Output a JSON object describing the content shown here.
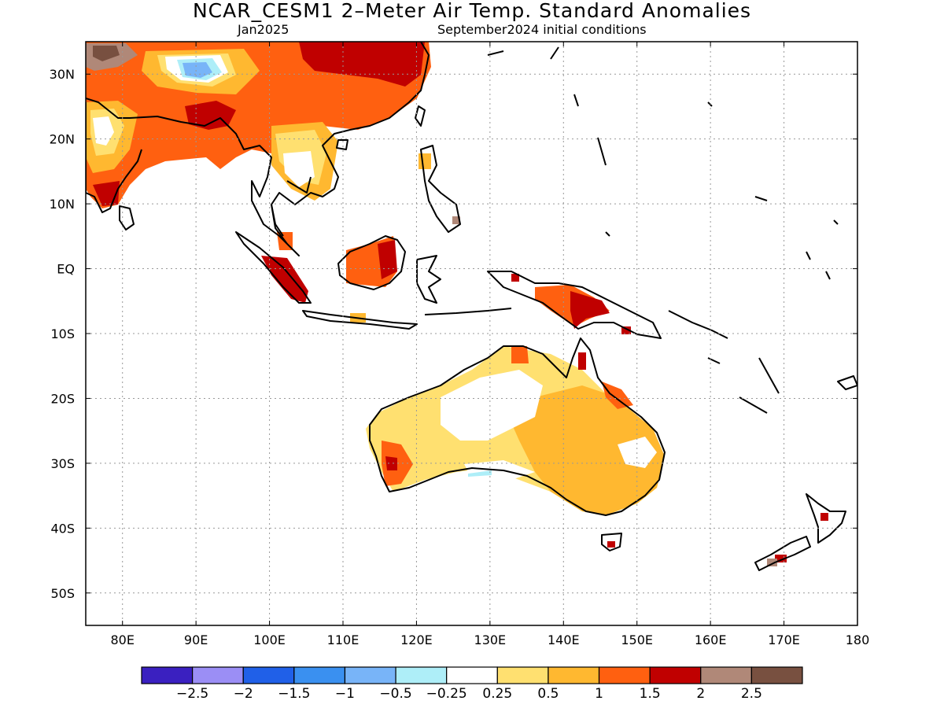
{
  "title": "NCAR_CESM1 2–Meter Air Temp. Standard Anomalies",
  "subtitle_left": "Jan2025",
  "subtitle_right": "September2024 initial conditions",
  "map": {
    "lon_range": [
      75,
      180
    ],
    "lat_range": [
      -55,
      35
    ],
    "lon_ticks": [
      {
        "value": 80,
        "label": "80E"
      },
      {
        "value": 90,
        "label": "90E"
      },
      {
        "value": 100,
        "label": "100E"
      },
      {
        "value": 110,
        "label": "110E"
      },
      {
        "value": 120,
        "label": "120E"
      },
      {
        "value": 130,
        "label": "130E"
      },
      {
        "value": 140,
        "label": "140E"
      },
      {
        "value": 150,
        "label": "150E"
      },
      {
        "value": 160,
        "label": "160E"
      },
      {
        "value": 170,
        "label": "170E"
      },
      {
        "value": 180,
        "label": "180"
      }
    ],
    "lat_ticks": [
      {
        "value": 30,
        "label": "30N"
      },
      {
        "value": 20,
        "label": "20N"
      },
      {
        "value": 10,
        "label": "10N"
      },
      {
        "value": 0,
        "label": "EQ"
      },
      {
        "value": -10,
        "label": "10S"
      },
      {
        "value": -20,
        "label": "20S"
      },
      {
        "value": -30,
        "label": "30S"
      },
      {
        "value": -40,
        "label": "40S"
      },
      {
        "value": -50,
        "label": "50S"
      }
    ],
    "grid": "dotted"
  },
  "colorbar": {
    "colors": [
      "#3a20c0",
      "#9b8ef5",
      "#2060e8",
      "#3a90f0",
      "#78b4f8",
      "#aeeef8",
      "#ffffff",
      "#ffe070",
      "#ffb830",
      "#ff6010",
      "#c00000",
      "#b08878",
      "#785040"
    ],
    "labels": [
      "−2.5",
      "−2",
      "−1.5",
      "−1",
      "−0.5",
      "−0.25",
      "0.25",
      "0.5",
      "1",
      "1.5",
      "2",
      "2.5"
    ]
  },
  "colors": {
    "c1": "#ffe070",
    "c2": "#ffb830",
    "c3": "#ff6010",
    "c4": "#c00000",
    "c5": "#b08878",
    "c6": "#785040",
    "cool1": "#aeeef8",
    "cool2": "#78b4f8"
  }
}
